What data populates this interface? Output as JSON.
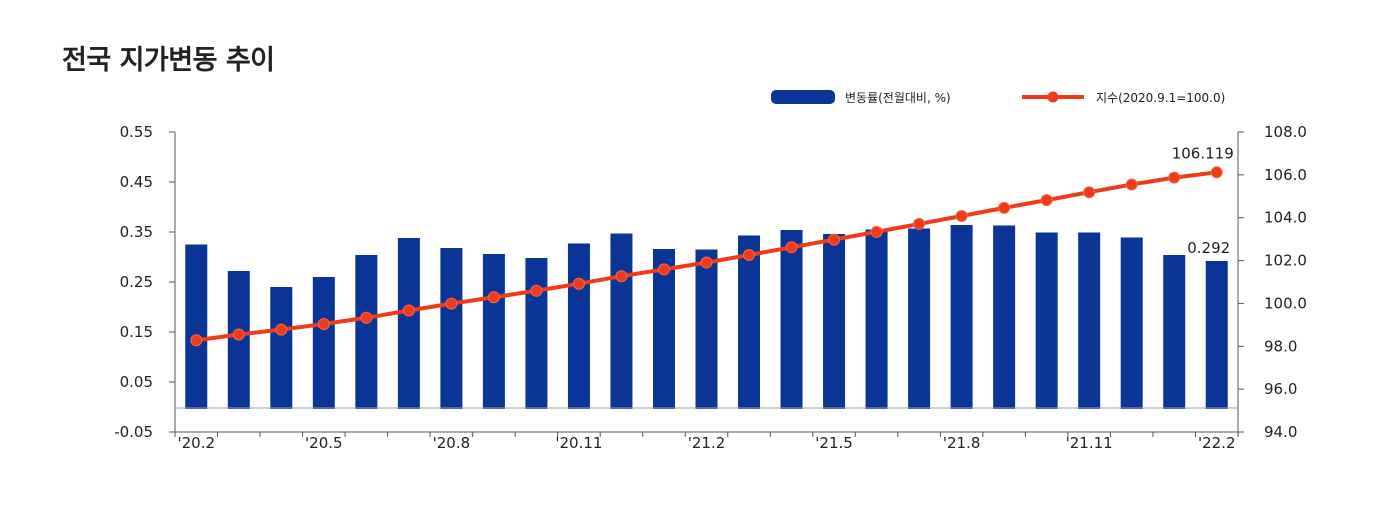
{
  "chart_data": {
    "type": "bar+line",
    "title": "전국 지가변동 추이",
    "x_tick_labels": [
      "'20.2",
      "'20.5",
      "'20.8",
      "'20.11",
      "'21.2",
      "'21.5",
      "'21.8",
      "'21.11",
      "'22.2"
    ],
    "categories": [
      "'20.2",
      "'20.3",
      "'20.4",
      "'20.5",
      "'20.6",
      "'20.7",
      "'20.8",
      "'20.9",
      "'20.10",
      "'20.11",
      "'20.12",
      "'21.1",
      "'21.2",
      "'21.3",
      "'21.4",
      "'21.5",
      "'21.6",
      "'21.7",
      "'21.8",
      "'21.9",
      "'21.10",
      "'21.11",
      "'21.12",
      "'22.1",
      "'22.2"
    ],
    "series": [
      {
        "name": "변동률(전월대비, %)",
        "type": "bar",
        "axis": "left",
        "color": "#0a3596",
        "values": [
          0.325,
          0.272,
          0.24,
          0.26,
          0.304,
          0.338,
          0.318,
          0.306,
          0.298,
          0.327,
          0.347,
          0.316,
          0.315,
          0.343,
          0.354,
          0.346,
          0.355,
          0.357,
          0.364,
          0.363,
          0.349,
          0.349,
          0.339,
          0.304,
          0.292
        ]
      },
      {
        "name": "지수(2020.9.1=100.0)",
        "type": "line",
        "axis": "right",
        "color": "#ef3a1c",
        "values": [
          98.28,
          98.55,
          98.78,
          99.04,
          99.33,
          99.67,
          99.99,
          100.29,
          100.59,
          100.92,
          101.27,
          101.59,
          101.91,
          102.26,
          102.62,
          102.98,
          103.34,
          103.71,
          104.08,
          104.46,
          104.82,
          105.19,
          105.55,
          105.87,
          106.119
        ]
      }
    ],
    "y_left": {
      "ticks": [
        "0.55",
        "0.45",
        "0.35",
        "0.25",
        "0.15",
        "0.05",
        "-0.05"
      ],
      "range": [
        -0.05,
        0.55
      ]
    },
    "y_right": {
      "ticks": [
        "108.0",
        "106.0",
        "104.0",
        "102.0",
        "100.0",
        "98.0",
        "96.0",
        "94.0"
      ],
      "range": [
        94.0,
        108.0
      ]
    },
    "annotations": {
      "last_bar_label": "0.292",
      "last_line_label": "106.119"
    },
    "legend_position": "top-right"
  }
}
